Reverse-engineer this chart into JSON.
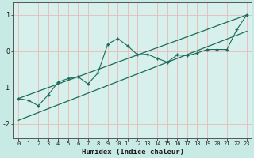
{
  "xlabel": "Humidex (Indice chaleur)",
  "background_color": "#c8eae4",
  "plot_bg_color": "#d8f0ec",
  "grid_color": "#e8b8b8",
  "line_color": "#1a6b5a",
  "x_data": [
    0,
    1,
    2,
    3,
    4,
    5,
    6,
    7,
    8,
    9,
    10,
    11,
    12,
    13,
    14,
    15,
    16,
    17,
    18,
    19,
    20,
    21,
    22,
    23
  ],
  "y_data": [
    -1.3,
    -1.35,
    -1.5,
    -1.2,
    -0.85,
    -0.75,
    -0.7,
    -0.9,
    -0.6,
    0.2,
    0.35,
    0.15,
    -0.1,
    -0.08,
    -0.2,
    -0.3,
    -0.1,
    -0.12,
    -0.05,
    0.05,
    0.05,
    0.05,
    0.6,
    1.0
  ],
  "line1_x": [
    0,
    23
  ],
  "line1_y": [
    -1.3,
    1.0
  ],
  "line2_x": [
    0,
    23
  ],
  "line2_y": [
    -1.9,
    0.55
  ],
  "xlim": [
    -0.5,
    23.5
  ],
  "ylim": [
    -2.4,
    1.35
  ],
  "yticks": [
    -2,
    -1,
    0,
    1
  ],
  "xticks": [
    0,
    1,
    2,
    3,
    4,
    5,
    6,
    7,
    8,
    9,
    10,
    11,
    12,
    13,
    14,
    15,
    16,
    17,
    18,
    19,
    20,
    21,
    22,
    23
  ]
}
